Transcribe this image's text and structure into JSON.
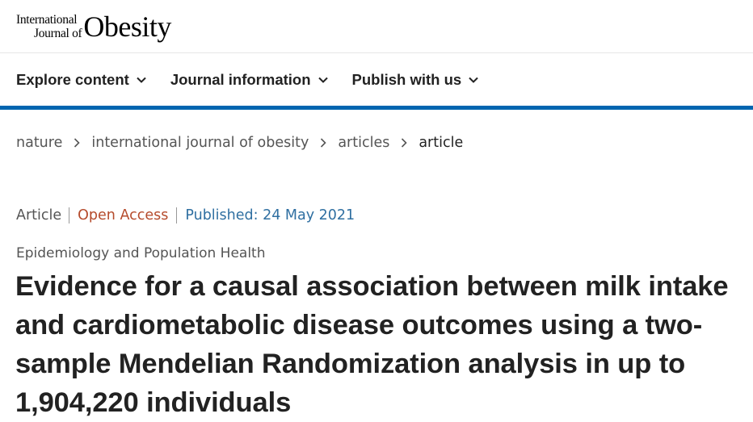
{
  "logo": {
    "line1": "International",
    "line2": "Journal of",
    "name": "Obesity"
  },
  "nav": {
    "items": [
      {
        "label": "Explore content"
      },
      {
        "label": "Journal information"
      },
      {
        "label": "Publish with us"
      }
    ]
  },
  "breadcrumb": {
    "items": [
      "nature",
      "international journal of obesity",
      "articles",
      "article"
    ]
  },
  "meta": {
    "type": "Article",
    "access": "Open Access",
    "published": "Published: 24 May 2021"
  },
  "subject": "Epidemiology and Population Health",
  "title": "Evidence for a causal association between milk intake and cardiometabolic disease outcomes using a two-sample Mendelian Randomization analysis in up to 1,904,220 individuals",
  "colors": {
    "accent_bar": "#0065b0",
    "open_access": "#b54b2c",
    "published": "#2f6fa1"
  },
  "icons": {
    "nav_chevron": "chevron-down-icon",
    "breadcrumb_separator": "chevron-right-icon"
  }
}
